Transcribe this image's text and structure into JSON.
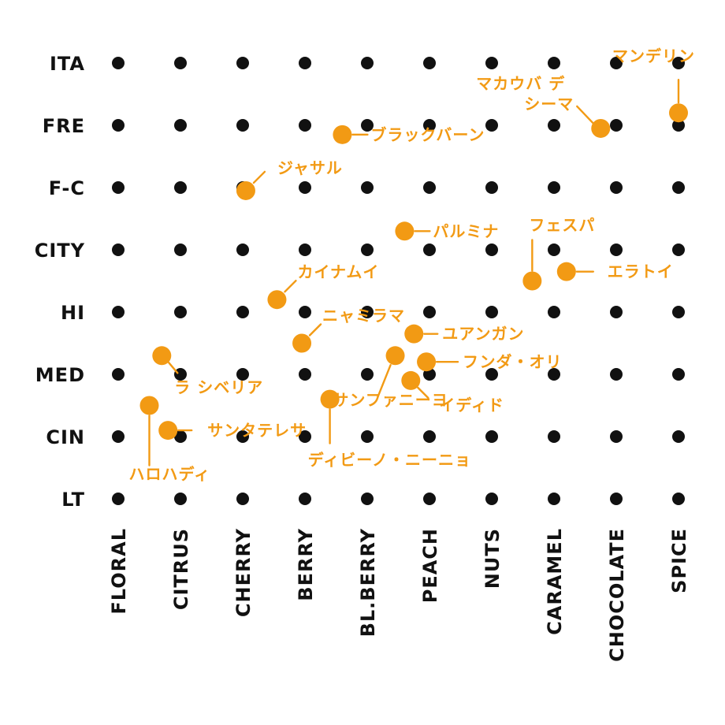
{
  "chart_data": {
    "type": "scatter",
    "title": "",
    "xlabel": "",
    "ylabel": "",
    "x_categories": [
      "FLORAL",
      "CITRUS",
      "CHERRY",
      "BERRY",
      "BL.BERRY",
      "PEACH",
      "NUTS",
      "CARAMEL",
      "CHOCOLATE",
      "SPICE"
    ],
    "y_categories": [
      "LT",
      "CIN",
      "MED",
      "HI",
      "CITY",
      "F-C",
      "FRE",
      "ITA"
    ],
    "grid": "dot-matrix",
    "grid_color": "#111111",
    "accent_color": "#f29a14",
    "points": [
      {
        "label": "マンデリン",
        "x": 9.0,
        "y": 6.2
      },
      {
        "label": "マカウバ デ シーマ",
        "x": 7.75,
        "y": 5.95
      },
      {
        "label": "ブラックバーン",
        "x": 3.6,
        "y": 5.85
      },
      {
        "label": "ジャサル",
        "x": 2.05,
        "y": 4.95
      },
      {
        "label": "パルミナ",
        "x": 4.6,
        "y": 4.3
      },
      {
        "label": "フェスパ",
        "x": 6.65,
        "y": 3.5
      },
      {
        "label": "エラトイ",
        "x": 7.2,
        "y": 3.65
      },
      {
        "label": "カイナムイ",
        "x": 2.55,
        "y": 3.2
      },
      {
        "label": "ニャミラマ",
        "x": 2.95,
        "y": 2.5
      },
      {
        "label": "ユアンガン",
        "x": 4.75,
        "y": 2.65
      },
      {
        "label": "ラ シベリア",
        "x": 0.7,
        "y": 2.3
      },
      {
        "label": "フンダ・オリ",
        "x": 4.95,
        "y": 2.2
      },
      {
        "label": "サンファニーヨ",
        "x": 4.45,
        "y": 2.3
      },
      {
        "label": "イディド",
        "x": 4.7,
        "y": 1.9
      },
      {
        "label": "ディビーノ・ニーニョ",
        "x": 3.4,
        "y": 1.6
      },
      {
        "label": "ハロハディ",
        "x": 0.5,
        "y": 1.5
      },
      {
        "label": "サンタテレサ",
        "x": 0.8,
        "y": 1.1
      }
    ]
  }
}
